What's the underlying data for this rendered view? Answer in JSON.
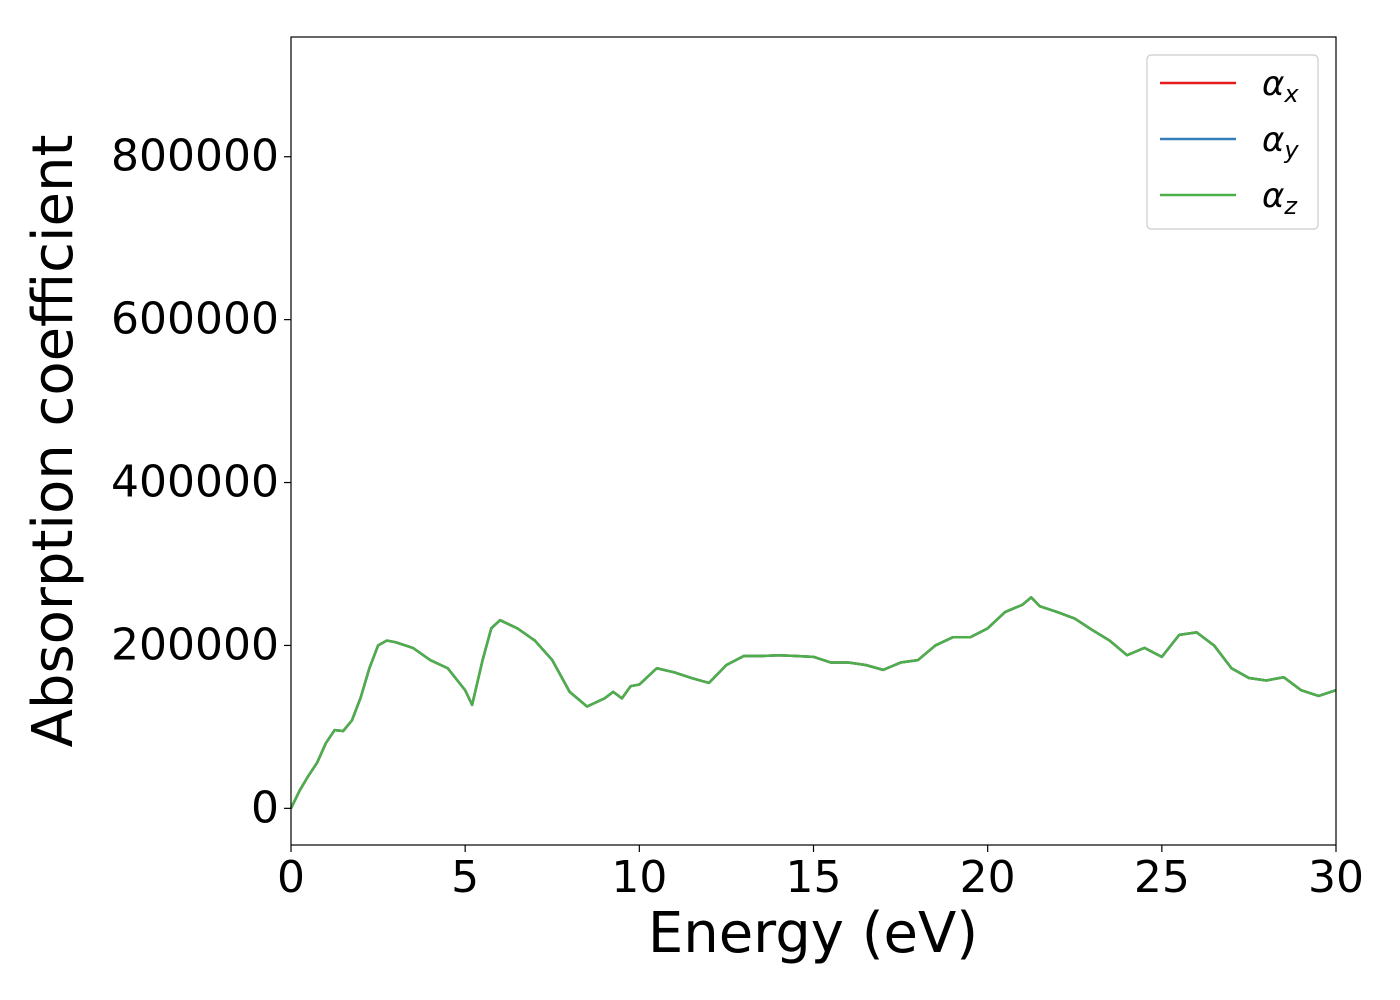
{
  "chart_data": {
    "type": "line",
    "xlabel": "Energy (eV)",
    "ylabel": "Absorption coefficient",
    "x": [
      0,
      0.25,
      0.5,
      0.75,
      1.0,
      1.25,
      1.5,
      1.75,
      2.0,
      2.25,
      2.5,
      2.75,
      3.0,
      3.5,
      4.0,
      4.5,
      5.0,
      5.2,
      5.5,
      5.75,
      6.0,
      6.5,
      7.0,
      7.5,
      8.0,
      8.5,
      9.0,
      9.25,
      9.5,
      9.75,
      10.0,
      10.5,
      11.0,
      11.5,
      12.0,
      12.5,
      13.0,
      13.5,
      14.0,
      14.5,
      15.0,
      15.5,
      16.0,
      16.5,
      17.0,
      17.5,
      18.0,
      18.5,
      19.0,
      19.5,
      20.0,
      20.5,
      21.0,
      21.25,
      21.5,
      22.0,
      22.5,
      23.0,
      23.5,
      24.0,
      24.5,
      25.0,
      25.5,
      26.0,
      26.5,
      27.0,
      27.5,
      28.0,
      28.5,
      29.0,
      29.5,
      30.0
    ],
    "series": [
      {
        "name": "αx",
        "color": "#e41a1c",
        "values": [
          0,
          22000,
          40000,
          56000,
          80000,
          96000,
          95000,
          108000,
          136000,
          172000,
          200000,
          206000,
          204000,
          197000,
          182000,
          172000,
          145000,
          127000,
          182000,
          221000,
          231000,
          221000,
          206000,
          182000,
          143000,
          125000,
          135000,
          143000,
          135000,
          150000,
          152000,
          172000,
          167000,
          160000,
          154000,
          176000,
          187000,
          187000,
          188000,
          187000,
          186000,
          179000,
          179000,
          176000,
          170000,
          179000,
          182000,
          200000,
          210000,
          210000,
          221000,
          241000,
          250000,
          259000,
          248000,
          241000,
          233000,
          219000,
          206000,
          188000,
          197000,
          186000,
          213000,
          216000,
          200000,
          172000,
          160000,
          157000,
          161000,
          145000,
          138000,
          145000
        ]
      },
      {
        "name": "αy",
        "color": "#377eb8",
        "values": [
          0,
          22000,
          40000,
          56000,
          80000,
          96000,
          95000,
          108000,
          136000,
          172000,
          200000,
          206000,
          204000,
          197000,
          182000,
          172000,
          145000,
          127000,
          182000,
          221000,
          231000,
          221000,
          206000,
          182000,
          143000,
          125000,
          135000,
          143000,
          135000,
          150000,
          152000,
          172000,
          167000,
          160000,
          154000,
          176000,
          187000,
          187000,
          188000,
          187000,
          186000,
          179000,
          179000,
          176000,
          170000,
          179000,
          182000,
          200000,
          210000,
          210000,
          221000,
          241000,
          250000,
          259000,
          248000,
          241000,
          233000,
          219000,
          206000,
          188000,
          197000,
          186000,
          213000,
          216000,
          200000,
          172000,
          160000,
          157000,
          161000,
          145000,
          138000,
          145000
        ]
      },
      {
        "name": "αz",
        "color": "#4daf4a",
        "values": [
          0,
          22000,
          40000,
          56000,
          80000,
          96000,
          95000,
          108000,
          136000,
          172000,
          200000,
          206000,
          204000,
          197000,
          182000,
          172000,
          145000,
          127000,
          182000,
          221000,
          231000,
          221000,
          206000,
          182000,
          143000,
          125000,
          135000,
          143000,
          135000,
          150000,
          152000,
          172000,
          167000,
          160000,
          154000,
          176000,
          187000,
          187000,
          188000,
          187000,
          186000,
          179000,
          179000,
          176000,
          170000,
          179000,
          182000,
          200000,
          210000,
          210000,
          221000,
          241000,
          250000,
          259000,
          248000,
          241000,
          233000,
          219000,
          206000,
          188000,
          197000,
          186000,
          213000,
          216000,
          200000,
          172000,
          160000,
          157000,
          161000,
          145000,
          138000,
          145000
        ]
      }
    ],
    "xlim": [
      0,
      30
    ],
    "xticks": [
      0,
      5,
      10,
      15,
      20,
      25,
      30
    ],
    "ylim": [
      -45000,
      947000
    ],
    "yticks": [
      0,
      200000,
      400000,
      600000,
      800000
    ],
    "grid": false,
    "legend": "upper right"
  }
}
